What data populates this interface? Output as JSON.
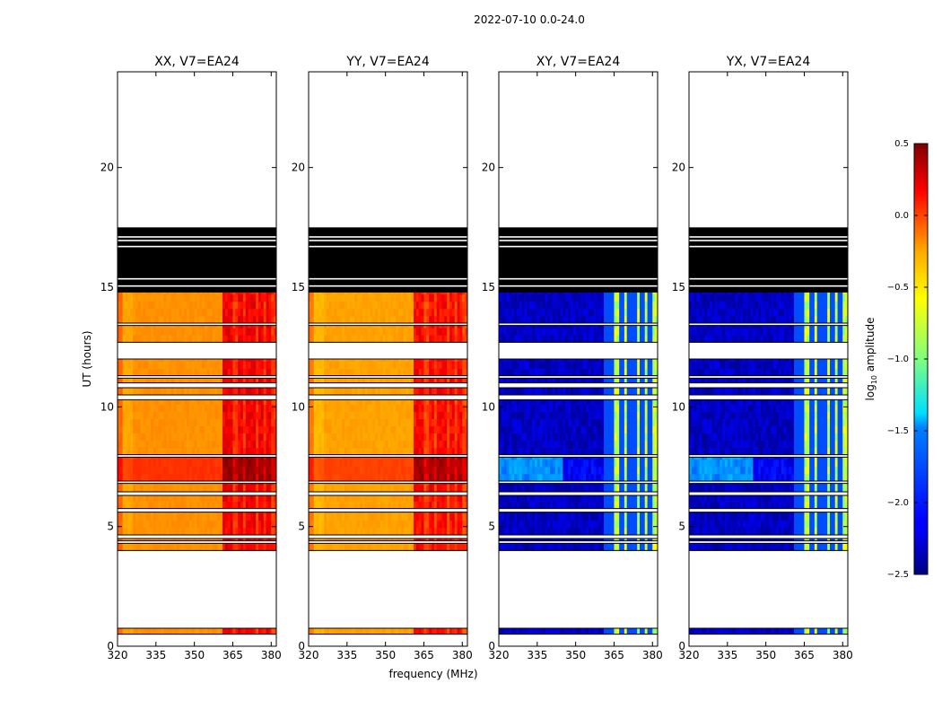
{
  "chart_data": {
    "type": "heatmap",
    "title": "2022-07-10 0.0-24.0",
    "xlabel": "frequency (MHz)",
    "ylabel": "UT (hours)",
    "xlim": [
      320,
      382
    ],
    "ylim": [
      0,
      24
    ],
    "x_ticks": [
      "320",
      "335",
      "350",
      "365",
      "380"
    ],
    "x_tick_values": [
      320,
      335,
      350,
      365,
      380
    ],
    "y_ticks": [
      "0",
      "5",
      "10",
      "15",
      "20"
    ],
    "y_tick_values": [
      0,
      5,
      10,
      15,
      20
    ],
    "colorbar": {
      "label": "log10 amplitude",
      "label_main": "log",
      "label_sub": "10",
      "label_tail": " amplitude",
      "range": [
        -2.5,
        0.5
      ],
      "ticks": [
        "0.5",
        "0.0",
        "−0.5",
        "−1.0",
        "−1.5",
        "−2.0",
        "−2.5"
      ],
      "tick_values": [
        0.5,
        0.0,
        -0.5,
        -1.0,
        -1.5,
        -2.0,
        -2.5
      ],
      "colormap": "jet"
    },
    "panels": [
      {
        "name": "XX",
        "title": "XX, V7=EA24",
        "kind": "parallel",
        "base_level": -0.3
      },
      {
        "name": "YY",
        "title": "YY, V7=EA24",
        "kind": "parallel",
        "base_level": -0.35
      },
      {
        "name": "XY",
        "title": "XY, V7=EA24",
        "kind": "cross",
        "base_level": -2.3
      },
      {
        "name": "YX",
        "title": "YX, V7=EA24",
        "kind": "cross",
        "base_level": -2.3
      }
    ],
    "data_segments": [
      {
        "start": 0.5,
        "end": 0.75
      },
      {
        "start": 4.0,
        "end": 4.3
      },
      {
        "start": 4.4,
        "end": 4.5
      },
      {
        "start": 4.65,
        "end": 5.6
      },
      {
        "start": 5.75,
        "end": 6.3
      },
      {
        "start": 6.45,
        "end": 6.8
      },
      {
        "start": 6.9,
        "end": 7.9
      },
      {
        "start": 8.0,
        "end": 10.3
      },
      {
        "start": 10.5,
        "end": 10.8
      },
      {
        "start": 11.0,
        "end": 11.2
      },
      {
        "start": 11.3,
        "end": 12.0
      },
      {
        "start": 12.7,
        "end": 13.4
      },
      {
        "start": 13.5,
        "end": 14.8
      }
    ],
    "flagged_segments": [
      {
        "start": 14.8,
        "end": 17.5
      }
    ],
    "rfi_channels_mhz": [
      362,
      364,
      368,
      371,
      373,
      376,
      379
    ]
  }
}
